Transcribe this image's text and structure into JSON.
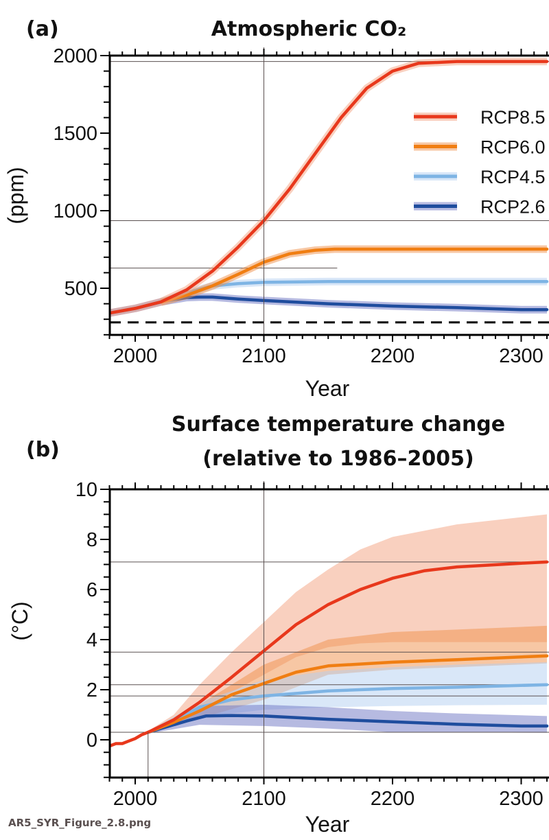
{
  "caption": "AR5_SYR_Figure_2.8.png",
  "colors": {
    "RCP8.5": "#e8381c",
    "RCP6.0": "#f07e12",
    "RCP4.5": "#7eb4e4",
    "RCP2.6": "#1f4d9e"
  },
  "band_colors": {
    "RCP8.5": "#f4a27f",
    "RCP6.0": "#f0904a",
    "RCP4.5": "#b3cff2",
    "RCP2.6": "#6d75c4"
  },
  "chart_data": [
    {
      "panel": "(a)",
      "type": "line",
      "title": "Atmospheric CO₂",
      "xlabel": "Year",
      "ylabel": "(ppm)",
      "xlim": [
        1980,
        2320
      ],
      "ylim": [
        200,
        2000
      ],
      "xticks": [
        2000,
        2100,
        2200,
        2300
      ],
      "yticks": [
        500,
        1000,
        1500,
        2000
      ],
      "legend": {
        "placement": "right",
        "entries": [
          "RCP8.5",
          "RCP6.0",
          "RCP4.5",
          "RCP2.6"
        ]
      },
      "preindustrial_dashed": 280,
      "reference_lines": {
        "horizontal": [
          1962,
          936,
          630
        ],
        "vertical": [
          2100
        ]
      },
      "series": [
        {
          "name": "RCP8.5",
          "x": [
            1980,
            2000,
            2020,
            2040,
            2060,
            2080,
            2100,
            2120,
            2140,
            2160,
            2180,
            2200,
            2220,
            2250,
            2320
          ],
          "y": [
            340,
            370,
            412,
            490,
            610,
            765,
            936,
            1140,
            1370,
            1600,
            1790,
            1900,
            1950,
            1962,
            1962
          ]
        },
        {
          "name": "RCP6.0",
          "x": [
            2020,
            2040,
            2060,
            2080,
            2100,
            2120,
            2140,
            2155,
            2320
          ],
          "y": [
            410,
            455,
            515,
            590,
            668,
            722,
            745,
            752,
            752
          ]
        },
        {
          "name": "RCP4.5",
          "x": [
            2020,
            2040,
            2060,
            2080,
            2100,
            2150,
            2320
          ],
          "y": [
            412,
            470,
            515,
            530,
            538,
            543,
            543
          ]
        },
        {
          "name": "RCP2.6",
          "x": [
            1980,
            2000,
            2020,
            2040,
            2050,
            2060,
            2080,
            2100,
            2150,
            2200,
            2250,
            2300,
            2320
          ],
          "y": [
            340,
            370,
            412,
            440,
            443,
            443,
            430,
            421,
            400,
            385,
            375,
            362,
            362
          ]
        }
      ]
    },
    {
      "panel": "(b)",
      "type": "line",
      "title": "Surface temperature change",
      "subtitle": "(relative to 1986–2005)",
      "xlabel": "Year",
      "ylabel": "(°C)",
      "xlim": [
        1980,
        2320
      ],
      "ylim": [
        -1.5,
        10
      ],
      "xticks": [
        2000,
        2100,
        2200,
        2300
      ],
      "yticks": [
        0,
        2,
        4,
        6,
        8,
        10
      ],
      "reference_lines": {
        "horizontal": [
          7.1,
          3.5,
          2.2,
          1.75,
          0.3
        ],
        "vertical": [
          2010,
          2100
        ]
      },
      "historical": {
        "x": [
          1980,
          1985,
          1990,
          1995,
          2000,
          2005,
          2010
        ],
        "y": [
          -0.25,
          -0.15,
          -0.15,
          -0.05,
          0.05,
          0.2,
          0.3
        ]
      },
      "series": [
        {
          "name": "RCP8.5",
          "x": [
            2010,
            2030,
            2050,
            2075,
            2100,
            2125,
            2150,
            2175,
            2200,
            2225,
            2250,
            2300,
            2320
          ],
          "y": [
            0.3,
            0.8,
            1.5,
            2.5,
            3.55,
            4.6,
            5.4,
            6.0,
            6.45,
            6.75,
            6.9,
            7.05,
            7.1
          ],
          "band_x": [
            2010,
            2030,
            2050,
            2075,
            2100,
            2125,
            2150,
            2175,
            2200,
            2250,
            2320
          ],
          "band_upper": [
            0.35,
            1.0,
            2.2,
            3.5,
            4.7,
            5.9,
            6.8,
            7.6,
            8.1,
            8.6,
            9.0
          ],
          "band_lower": [
            0.25,
            0.6,
            1.2,
            1.9,
            2.6,
            3.3,
            3.7,
            3.85,
            3.9,
            3.9,
            3.9
          ]
        },
        {
          "name": "RCP6.0",
          "x": [
            2010,
            2030,
            2050,
            2075,
            2100,
            2125,
            2150,
            2200,
            2250,
            2320
          ],
          "y": [
            0.3,
            0.7,
            1.15,
            1.8,
            2.25,
            2.7,
            2.95,
            3.1,
            3.2,
            3.35
          ],
          "band_x": [
            2010,
            2050,
            2100,
            2150,
            2200,
            2250,
            2320
          ],
          "band_upper": [
            0.35,
            1.4,
            3.0,
            4.0,
            4.3,
            4.4,
            4.55
          ],
          "band_lower": [
            0.25,
            0.85,
            1.6,
            2.6,
            2.8,
            2.9,
            3.05
          ]
        },
        {
          "name": "RCP4.5",
          "x": [
            2010,
            2030,
            2050,
            2075,
            2100,
            2150,
            2200,
            2250,
            2320
          ],
          "y": [
            0.3,
            0.75,
            1.3,
            1.6,
            1.75,
            1.95,
            2.05,
            2.1,
            2.2
          ],
          "band_x": [
            2010,
            2050,
            2100,
            2150,
            2200,
            2250,
            2320
          ],
          "band_upper": [
            0.35,
            1.5,
            2.4,
            2.75,
            2.9,
            3.0,
            3.1
          ],
          "band_lower": [
            0.25,
            0.9,
            1.2,
            1.3,
            1.35,
            1.38,
            1.4
          ]
        },
        {
          "name": "RCP2.6",
          "x": [
            2010,
            2040,
            2055,
            2075,
            2100,
            2150,
            2200,
            2250,
            2300,
            2320
          ],
          "y": [
            0.3,
            0.75,
            0.95,
            0.97,
            0.95,
            0.82,
            0.72,
            0.62,
            0.55,
            0.55
          ],
          "band_x": [
            2010,
            2050,
            2100,
            2150,
            2200,
            2250,
            2320
          ],
          "band_upper": [
            0.35,
            1.35,
            1.4,
            1.3,
            1.15,
            1.05,
            0.95
          ],
          "band_lower": [
            0.25,
            0.6,
            0.55,
            0.45,
            0.3,
            0.3,
            0.28
          ]
        }
      ]
    }
  ]
}
